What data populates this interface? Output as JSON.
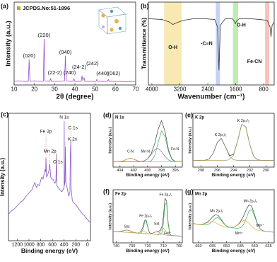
{
  "chart_data": [
    {
      "type": "line",
      "panel": "(a)",
      "xlabel": "2θ (degree)",
      "ylabel": "Intensity (a.u.)",
      "legend": "JCPDS.No:51-1896",
      "xlim": [
        10,
        70
      ],
      "xticks": [
        10,
        20,
        30,
        40,
        50,
        60,
        70
      ],
      "ylim": [
        0,
        180
      ],
      "x": [
        10,
        12,
        15,
        17,
        17.4,
        17.8,
        20,
        24.4,
        24.8,
        25.2,
        27.6,
        28,
        28.4,
        31,
        34.9,
        35.3,
        35.7,
        39.1,
        39.5,
        39.9,
        43.1,
        43.5,
        43.9,
        44.5,
        44.9,
        47,
        50.4,
        50.8,
        51.2,
        56.1,
        56.5,
        56.9,
        60,
        65,
        70
      ],
      "series": [
        {
          "color": "#9a4fd0",
          "values": [
            8,
            9,
            8,
            8,
            55,
            8,
            9,
            8,
            100,
            9,
            8,
            14,
            8,
            8,
            9,
            63,
            9,
            8,
            14,
            8,
            8,
            20,
            10,
            16,
            8,
            8,
            8,
            12,
            8,
            8,
            12,
            8,
            8,
            7,
            8
          ]
        }
      ],
      "peaks": [
        {
          "label": "(020)",
          "x": 17.4
        },
        {
          "label": "(220)",
          "x": 24.8
        },
        {
          "label": "(22-2)",
          "x": 28
        },
        {
          "label": "(040)",
          "x": 35.3
        },
        {
          "label": "(240)",
          "x": 39.5
        },
        {
          "label": "(24-2)",
          "x": 43.5
        },
        {
          "label": "(242)",
          "x": 44.5
        },
        {
          "label": "(440)",
          "x": 50.8
        },
        {
          "label": "(062)",
          "x": 56.5
        }
      ]
    },
    {
      "type": "line",
      "panel": "(b)",
      "xlabel": "Wavenumber (cm⁻¹)",
      "ylabel": "Transmittance (%)",
      "xlim": [
        4100,
        500
      ],
      "xticks": [
        4000,
        3200,
        2400,
        1600,
        800
      ],
      "ylim": [
        0,
        100
      ],
      "x": [
        4100,
        3700,
        3500,
        3400,
        3300,
        3100,
        2800,
        2500,
        2200,
        2120,
        2080,
        2040,
        1900,
        1700,
        1640,
        1610,
        1580,
        1500,
        1200,
        900,
        700,
        620,
        590,
        560,
        500
      ],
      "series": [
        {
          "color": "#333333",
          "values": [
            80,
            79,
            76,
            73,
            75,
            78,
            80,
            80,
            79,
            70,
            18,
            72,
            80,
            80,
            77,
            74,
            77,
            80,
            80,
            79,
            78,
            70,
            58,
            72,
            76
          ]
        }
      ],
      "bands": [
        {
          "label": "O-H",
          "range": [
            3650,
            3150
          ],
          "color": "#f6e29a"
        },
        {
          "label": "-C≡N",
          "range": [
            2170,
            2050
          ],
          "color": "#b3c3f2"
        },
        {
          "label": "O-H",
          "range": [
            1680,
            1530
          ],
          "color": "#a9e69a"
        },
        {
          "label": "Fe-CN",
          "range": [
            760,
            640
          ],
          "color": "#f5ada3"
        }
      ]
    },
    {
      "type": "line",
      "panel": "(c)",
      "xlabel": "Binding energy (eV)",
      "ylabel": "Intensity (a.u.)",
      "xlim": [
        1350,
        -50
      ],
      "xticks": [
        1200,
        1000,
        800,
        600,
        400,
        200,
        0
      ],
      "ylim": [
        0,
        120
      ],
      "x": [
        1350,
        1300,
        1250,
        1200,
        1150,
        1100,
        1050,
        1000,
        950,
        900,
        870,
        850,
        820,
        800,
        780,
        760,
        740,
        725,
        715,
        710,
        700,
        680,
        660,
        650,
        642,
        630,
        610,
        590,
        560,
        540,
        531,
        525,
        500,
        470,
        440,
        420,
        400,
        398,
        395,
        385,
        378,
        370,
        350,
        320,
        300,
        295,
        285,
        280,
        260,
        240,
        200,
        150,
        100,
        60,
        30,
        0,
        -30,
        -50
      ],
      "series": [
        {
          "color": "#8a55c0",
          "values": [
            25,
            28,
            30,
            33,
            36,
            38,
            42,
            45,
            48,
            55,
            50,
            53,
            52,
            57,
            60,
            58,
            63,
            67,
            65,
            78,
            60,
            62,
            66,
            72,
            70,
            60,
            58,
            58,
            54,
            56,
            82,
            52,
            50,
            48,
            46,
            48,
            50,
            112,
            52,
            55,
            88,
            55,
            50,
            42,
            46,
            78,
            95,
            50,
            38,
            36,
            34,
            30,
            26,
            24,
            22,
            20,
            18,
            18
          ]
        }
      ],
      "peaks": [
        {
          "label": "N 1s",
          "x": 398
        },
        {
          "label": "C 1s",
          "x": 285
        },
        {
          "label": "K 2s",
          "x": 378
        },
        {
          "label": "Fe 2p",
          "x": 710
        },
        {
          "label": "Mn 2p",
          "x": 642
        },
        {
          "label": "O 1s",
          "x": 531
        }
      ]
    },
    {
      "type": "line",
      "panel": "(d)",
      "title": "N 1s",
      "xlabel": "Binding energy (eV)",
      "ylabel": "Intensity (a.u.)",
      "xlim": [
        405,
        395
      ],
      "xticks": [
        404,
        402,
        400,
        398,
        396
      ],
      "ylim": [
        0,
        120
      ],
      "x": [
        405,
        404.5,
        404,
        403.5,
        403,
        402.5,
        402,
        401.5,
        401,
        400.5,
        400,
        399.5,
        399,
        398.5,
        398,
        397.5,
        397,
        396.5,
        396,
        395.5,
        395
      ],
      "series": [
        {
          "color": "#555555",
          "values": [
            12.5,
            12,
            12.3,
            14,
            17.7,
            20,
            17.7,
            14.2,
            12.7,
            14,
            18.7,
            30,
            51.5,
            84.2,
            103.7,
            79.7,
            38.7,
            17.6,
            12.6,
            12,
            12.3
          ]
        },
        {
          "color": "#3cb44b",
          "values": [
            12,
            12,
            12,
            12,
            12,
            12,
            12,
            12,
            12,
            12,
            12.2,
            14,
            25,
            54.5,
            81,
            68,
            34.7,
            16.6,
            12.5,
            12,
            12
          ]
        },
        {
          "color": "#8e6fc1",
          "values": [
            12,
            12,
            12,
            12,
            12,
            12,
            12,
            12,
            12.3,
            13.8,
            18.5,
            28,
            38.5,
            41.7,
            34.7,
            23.7,
            16,
            13,
            12.1,
            12,
            12
          ]
        },
        {
          "color": "#f0a040",
          "values": [
            12,
            12,
            12,
            14,
            17.7,
            20,
            17.7,
            14,
            12.4,
            12,
            12,
            12,
            12,
            12,
            12,
            12,
            12,
            12,
            12,
            12,
            12
          ]
        }
      ],
      "peaks": [
        {
          "label": "C-N",
          "x": 402.5,
          "color": "#f0a040"
        },
        {
          "label": "Mn-N",
          "x": 399.5,
          "color": "#8e6fc1"
        },
        {
          "label": "Fe-N",
          "x": 397.5,
          "color": "#3cb44b"
        }
      ]
    },
    {
      "type": "line",
      "panel": "(e)",
      "title": "K 2p",
      "xlabel": "Binding energy (eV)",
      "ylabel": "Intensity (a.u.)",
      "xlim": [
        299,
        289
      ],
      "xticks": [
        298,
        296,
        294,
        292,
        290
      ],
      "ylim": [
        0,
        120
      ],
      "x": [
        299,
        298.5,
        298,
        297.5,
        297,
        296.5,
        296,
        295.5,
        295,
        294.5,
        294,
        293.5,
        293,
        292.5,
        292,
        291.5,
        291,
        290.5,
        290,
        289.5,
        289
      ],
      "series": [
        {
          "color": "#333333",
          "values": [
            15.4,
            15,
            15.2,
            15.3,
            18.3,
            31,
            55,
            64,
            45,
            25.8,
            27.9,
            58.1,
            95.4,
            90,
            50,
            23.1,
            15.9,
            15,
            15.2,
            15,
            15.1
          ]
        },
        {
          "color": "#8a8a7a",
          "values": [
            15,
            15,
            15,
            15.3,
            18.3,
            31,
            55,
            64,
            45,
            24.3,
            16.4,
            15.1,
            15,
            15,
            15,
            15,
            15,
            15,
            15,
            15,
            15
          ]
        },
        {
          "color": "#b8a060",
          "values": [
            15,
            15,
            15,
            15,
            15,
            15,
            15,
            15,
            15,
            16.5,
            26.5,
            58,
            95.4,
            90,
            50,
            23.1,
            15.9,
            15,
            15,
            15,
            15
          ]
        }
      ],
      "peaks": [
        {
          "label": "K 2p₁/₂",
          "x": 295.6
        },
        {
          "label": "K 2p₃/₂",
          "x": 292.8
        }
      ]
    },
    {
      "type": "line",
      "panel": "(f)",
      "title": "Fe 2p",
      "xlabel": "Binding energy (eV)",
      "ylabel": "Intensity (a.u.)",
      "xlim": [
        742,
        698
      ],
      "xticks": [
        740,
        730,
        720,
        710,
        700
      ],
      "ylim": [
        0,
        120
      ],
      "x": [
        742,
        741,
        740,
        739,
        738,
        737,
        736,
        735,
        734,
        733,
        732,
        731,
        730,
        729,
        728,
        727,
        726,
        725,
        724,
        723,
        722,
        721,
        720,
        719,
        718,
        717,
        716,
        715,
        714,
        713,
        712,
        711,
        710,
        709,
        708,
        707,
        706,
        705,
        704,
        703,
        702,
        701,
        700,
        699,
        698
      ],
      "series": [
        {
          "color": "#555555",
          "values": [
            26.2,
            25.9,
            25.5,
            25.4,
            25.7,
            26.15,
            26.9,
            27.85,
            28.6,
            28.75,
            28.1,
            26.85,
            25.4,
            24.15,
            23.2,
            22.45,
            22.8,
            24.35,
            27.8,
            36.35,
            50.3,
            52.15,
            36.2,
            24.15,
            21.1,
            21.75,
            23.1,
            24.55,
            25.4,
            26.05,
            28.5,
            35.75,
            59.8,
            100.65,
            94.3,
            45.25,
            20.9,
            16.95,
            16.5,
            16.25,
            16,
            15.75,
            15.5,
            15.25,
            15
          ]
        },
        {
          "color": "#3cb44b",
          "values": [
            26,
            25.75,
            25.5,
            25.25,
            25,
            24.75,
            24.5,
            24.25,
            24,
            23.75,
            23.5,
            23.25,
            23,
            22.75,
            22.5,
            22.25,
            22,
            21.85,
            23,
            30.35,
            45.5,
            49.65,
            35.4,
            23.65,
            20.3,
            19.75,
            19.5,
            19.25,
            19,
            18.75,
            18.7,
            21.75,
            44,
            88.35,
            88.1,
            43.25,
            20.5,
            16.95,
            16.5,
            16.25,
            16,
            15.75,
            15.5,
            15.25,
            15
          ]
        },
        {
          "color": "#f0a040",
          "values": [
            26,
            25.75,
            25.5,
            25.25,
            25,
            24.75,
            24.5,
            24.25,
            24,
            23.75,
            23.5,
            23.25,
            23,
            22.75,
            22.5,
            22.45,
            22.8,
            24.25,
            26.3,
            27.25,
            25.8,
            23.25,
            21.3,
            20.45,
            20,
            19.75,
            19.5,
            19.25,
            19.4,
            20.75,
            24.7,
            30.25,
            33,
            29.75,
            23.7,
            19.25,
            17.4,
            16.75,
            16.5,
            16.25,
            16,
            15.75,
            15.5,
            15.25,
            15
          ]
        },
        {
          "color": "#9a9a9a",
          "values": [
            26,
            25.75,
            25.5,
            25.25,
            25.7,
            26.15,
            26.9,
            27.85,
            28.6,
            28.75,
            28.1,
            26.85,
            25.4,
            24.15,
            23.2,
            22.25,
            22,
            21.75,
            21.5,
            21.25,
            21,
            20.75,
            20.5,
            20.55,
            20.8,
            21.75,
            23.1,
            24.55,
            25,
            24.05,
            22.1,
            20.25,
            18.8,
            18.05,
            17.5,
            17.25,
            17,
            16.75,
            16.5,
            16.25,
            16,
            15.75,
            15.5,
            15.25,
            15
          ]
        }
      ],
      "peaks": [
        {
          "label": "Sat.",
          "x": 733
        },
        {
          "label": "Fe 2p₁/₂",
          "x": 721.3
        },
        {
          "label": "Sat.",
          "x": 714
        },
        {
          "label": "Fe 2p₃/₂",
          "x": 708.5
        },
        {
          "label": "Fe³⁺",
          "x": 711,
          "color": "#e08a2a"
        }
      ]
    },
    {
      "type": "line",
      "panel": "(g)",
      "title": "Mn 2p",
      "xlabel": "Binding energy (eV)",
      "ylabel": "Intensity (a.u.)",
      "xlim": [
        662,
        633
      ],
      "xticks": [
        660,
        655,
        650,
        645,
        640,
        635
      ],
      "ylim": [
        0,
        90
      ],
      "x": [
        662,
        661,
        660,
        659,
        658,
        657,
        656,
        655,
        654,
        653,
        652,
        651,
        650,
        649,
        648,
        647,
        646,
        645,
        644,
        643,
        642,
        641,
        640,
        639,
        638,
        637,
        636,
        635,
        634,
        633
      ],
      "series": [
        {
          "color": "#555555",
          "values": [
            32.8,
            32.1,
            31.5,
            31.6,
            32.4,
            34.7,
            38.7,
            44,
            47.7,
            46.7,
            40.5,
            33.4,
            28.5,
            26.5,
            26.2,
            27.3,
            30.5,
            36.3,
            44.8,
            55.8,
            64.5,
            62,
            47.8,
            32.5,
            23.6,
            20.6,
            19.5,
            19.1,
            18.5,
            18.2
          ]
        },
        {
          "color": "#3cb44b",
          "values": [
            32.5,
            32,
            31.5,
            31,
            30.7,
            30.9,
            32.7,
            37,
            41.7,
            42.9,
            38.8,
            32.8,
            28.5,
            26.5,
            25.5,
            25,
            24.8,
            25.7,
            30.4,
            41.4,
            53.9,
            56.3,
            45.5,
            31.8,
            23.6,
            20.6,
            19.5,
            19,
            18.5,
            18
          ]
        },
        {
          "color": "#f0a040",
          "values": [
            32.5,
            32,
            31.5,
            31.6,
            32.2,
            33.8,
            35.5,
            36,
            34.5,
            31.8,
            29.2,
            27.6,
            26.5,
            26,
            26.2,
            27.3,
            30.2,
            34.6,
            37.9,
            37.4,
            33.1,
            27.7,
            23.8,
            21.7,
            20.5,
            20,
            19.5,
            19,
            18.5,
            18
          ]
        }
      ],
      "peaks": [
        {
          "label": "Mn 2p₁/₂",
          "x": 653.5
        },
        {
          "label": "Mn 2p₃/₂",
          "x": 641.5
        },
        {
          "label": "Mn³⁺",
          "x": 645,
          "color": "#e08a2a"
        },
        {
          "label": "Mn²⁺",
          "x": 639,
          "color": "#3cb44b"
        }
      ]
    }
  ]
}
